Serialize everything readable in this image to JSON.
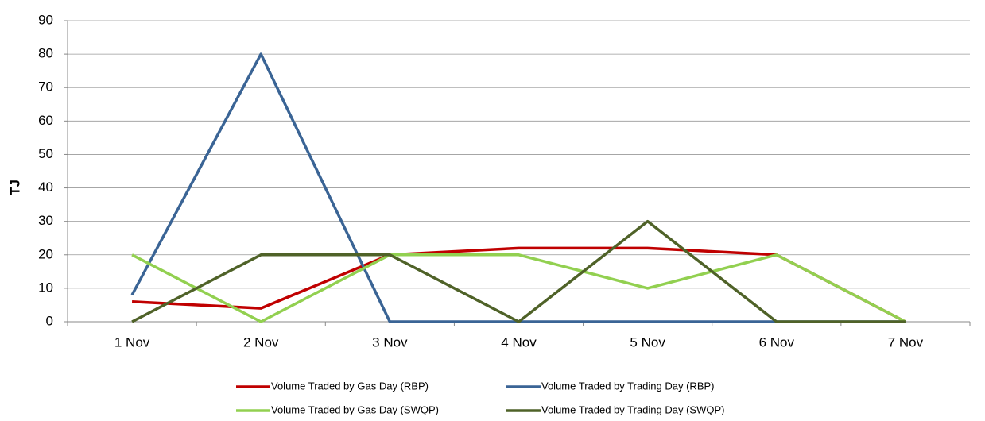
{
  "chart_data": {
    "type": "line",
    "y_label": "TJ",
    "categories": [
      "1 Nov",
      "2 Nov",
      "3 Nov",
      "4 Nov",
      "5 Nov",
      "6 Nov",
      "7 Nov"
    ],
    "series": [
      {
        "name": "Volume Traded by Gas Day (RBP)",
        "color": "#c00000",
        "values": [
          6,
          4,
          20,
          22,
          22,
          20,
          0
        ]
      },
      {
        "name": "Volume Traded by Trading Day (RBP)",
        "color": "#3a6495",
        "values": [
          8,
          80,
          0,
          0,
          0,
          0,
          0
        ]
      },
      {
        "name": "Volume Traded by Gas Day (SWQP)",
        "color": "#92d050",
        "values": [
          20,
          0,
          20,
          20,
          10,
          20,
          0
        ]
      },
      {
        "name": "Volume Traded by Trading Day (SWQP)",
        "color": "#4f6228",
        "values": [
          0,
          20,
          20,
          0,
          30,
          0,
          0
        ]
      }
    ],
    "ylim": [
      0,
      90
    ],
    "yticks": [
      0,
      10,
      20,
      30,
      40,
      50,
      60,
      70,
      80,
      90
    ],
    "grid": true,
    "legend": "bottom"
  }
}
